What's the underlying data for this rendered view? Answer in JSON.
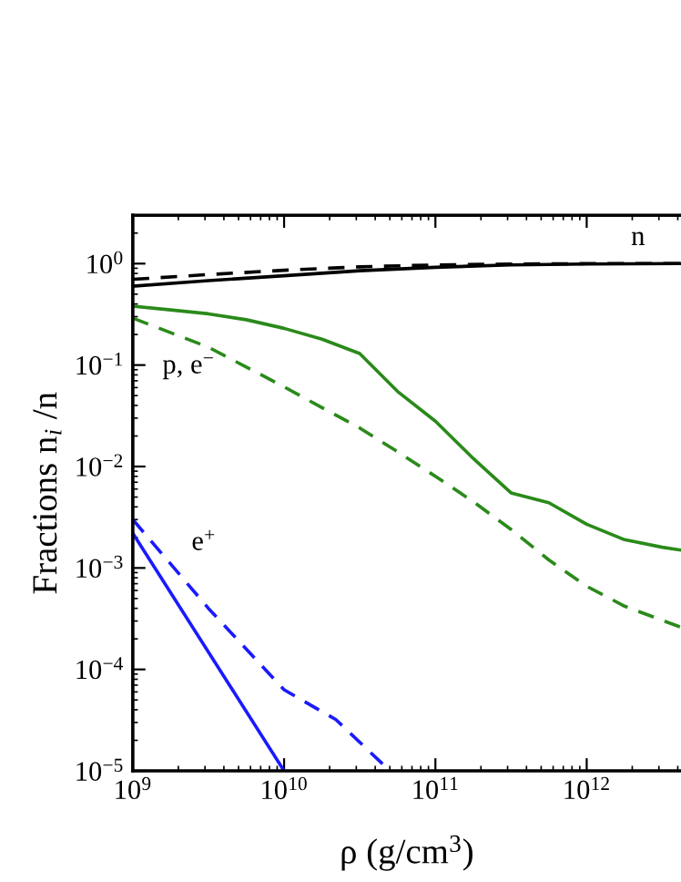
{
  "chart_data": {
    "type": "line",
    "xlabel": "ρ (g/cm$^{3}$)",
    "ylabel": "Fractions n$_{i}$ /n",
    "log": "xy",
    "grid": false,
    "xlim": [
      1000000000.0,
      4200000000000.0
    ],
    "ylim": [
      1e-05,
      3
    ],
    "xticks": [
      {
        "value": 1000000000.0,
        "label": "10$^{9}$"
      },
      {
        "value": 10000000000.0,
        "label": "10$^{10}$"
      },
      {
        "value": 100000000000.0,
        "label": "10$^{11}$"
      },
      {
        "value": 1000000000000.0,
        "label": "10$^{12}$"
      }
    ],
    "yticks": [
      {
        "value": 1e-05,
        "label": "10$^{−5}$"
      },
      {
        "value": 0.0001,
        "label": "10$^{−4}$"
      },
      {
        "value": 0.001,
        "label": "10$^{−3}$"
      },
      {
        "value": 0.01,
        "label": "10$^{−2}$"
      },
      {
        "value": 0.1,
        "label": "10$^{−1}$"
      },
      {
        "value": 1,
        "label": "10$^{0}$"
      }
    ],
    "series": [
      {
        "name": "n",
        "color": "#000000",
        "line_style": "solid",
        "x": [
          1000000000.0,
          3160000000.0,
          10000000000.0,
          31600000000.0,
          100000000000.0,
          316000000000.0,
          1000000000000.0,
          4200000000000.0
        ],
        "values": [
          0.6,
          0.68,
          0.76,
          0.85,
          0.92,
          0.97,
          0.99,
          1.0
        ]
      },
      {
        "color": "#000000",
        "line_style": "dashed",
        "x": [
          1000000000.0,
          3160000000.0,
          10000000000.0,
          31600000000.0,
          100000000000.0,
          316000000000.0,
          1000000000000.0,
          4200000000000.0
        ],
        "values": [
          0.7,
          0.78,
          0.86,
          0.93,
          0.97,
          0.99,
          1.0,
          1.0
        ]
      },
      {
        "name": "p, e$^{−}$",
        "color": "#2a8a1a",
        "line_style": "solid",
        "x": [
          1000000000.0,
          1780000000.0,
          3160000000.0,
          5620000000.0,
          10000000000.0,
          17800000000.0,
          31600000000.0,
          56200000000.0,
          100000000000.0,
          178000000000.0,
          316000000000.0,
          562000000000.0,
          1000000000000.0,
          1780000000000.0,
          3160000000000.0,
          4200000000000.0
        ],
        "values": [
          0.38,
          0.35,
          0.32,
          0.28,
          0.23,
          0.18,
          0.13,
          0.055,
          0.028,
          0.012,
          0.0055,
          0.0044,
          0.0027,
          0.0019,
          0.0016,
          0.0015
        ]
      },
      {
        "color": "#2a8a1a",
        "line_style": "dashed",
        "x": [
          1000000000.0,
          3160000000.0,
          10000000000.0,
          17800000000.0,
          31600000000.0,
          56200000000.0,
          100000000000.0,
          178000000000.0,
          316000000000.0,
          562000000000.0,
          1000000000000.0,
          1780000000000.0,
          4200000000000.0
        ],
        "values": [
          0.29,
          0.15,
          0.061,
          0.038,
          0.024,
          0.014,
          0.008,
          0.0045,
          0.0024,
          0.0012,
          0.00066,
          0.00042,
          0.00026
        ]
      },
      {
        "name": "e$^{+}$",
        "color": "#1a1aff",
        "line_style": "solid",
        "x": [
          1000000000.0,
          10000000000.0
        ],
        "values": [
          0.0022,
          1e-05
        ]
      },
      {
        "color": "#1a1aff",
        "line_style": "dashed",
        "x": [
          1000000000.0,
          3160000000.0,
          10000000000.0,
          22000000000.0,
          50000000000.0
        ],
        "values": [
          0.003,
          0.0004,
          6.3e-05,
          3.2e-05,
          1e-05
        ]
      }
    ]
  }
}
